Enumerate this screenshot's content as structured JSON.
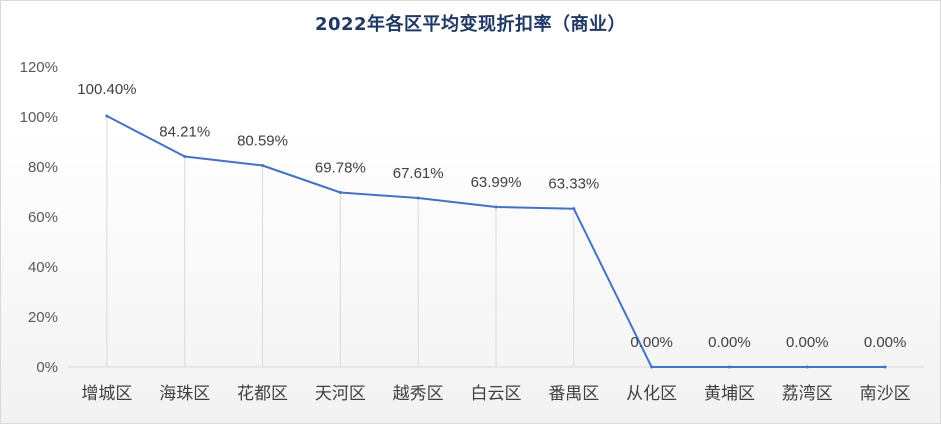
{
  "chart_data": {
    "type": "line",
    "title": "2022年各区平均变现折扣率（商业）",
    "xlabel": "",
    "ylabel": "",
    "categories": [
      "增城区",
      "海珠区",
      "花都区",
      "天河区",
      "越秀区",
      "白云区",
      "番禺区",
      "从化区",
      "黄埔区",
      "荔湾区",
      "南沙区"
    ],
    "series": [
      {
        "values": [
          100.4,
          84.21,
          80.59,
          69.78,
          67.61,
          63.99,
          63.33,
          0.0,
          0.0,
          0.0,
          0.0
        ],
        "data_labels": [
          "100.40%",
          "84.21%",
          "80.59%",
          "69.78%",
          "67.61%",
          "63.99%",
          "63.33%",
          "0.00%",
          "0.00%",
          "0.00%",
          "0.00%"
        ]
      }
    ],
    "ylim": [
      0,
      120
    ],
    "yticks": [
      0,
      20,
      40,
      60,
      80,
      100,
      120
    ],
    "ytick_labels": [
      "0%",
      "20%",
      "40%",
      "60%",
      "80%",
      "100%",
      "120%"
    ],
    "drop_lines": true,
    "grid": false,
    "legend": "none",
    "colors": {
      "line": "#4472c4",
      "drop_line": "#d9d9d9",
      "axis": "#d9d9d9",
      "title": "#1f3864"
    }
  }
}
